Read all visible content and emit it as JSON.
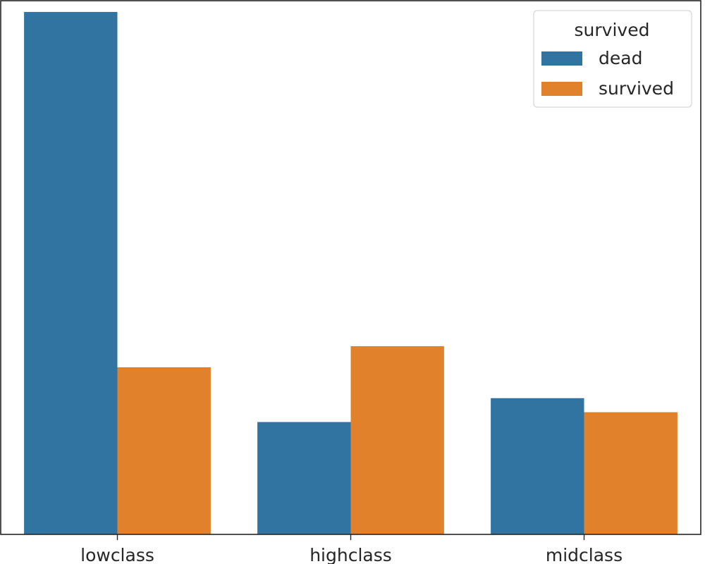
{
  "chart_data": {
    "type": "bar",
    "title": "",
    "xlabel": "",
    "ylabel": "",
    "categories": [
      "lowclass",
      "highclass",
      "midclass"
    ],
    "ylim": [
      0,
      380
    ],
    "series": [
      {
        "name": "dead",
        "color": "#3274a1",
        "values": [
          372,
          80,
          97
        ]
      },
      {
        "name": "survived",
        "color": "#e1812c",
        "values": [
          119,
          134,
          87
        ]
      }
    ],
    "legend": {
      "title": "survived",
      "placement": "top-right"
    },
    "grid": false
  }
}
